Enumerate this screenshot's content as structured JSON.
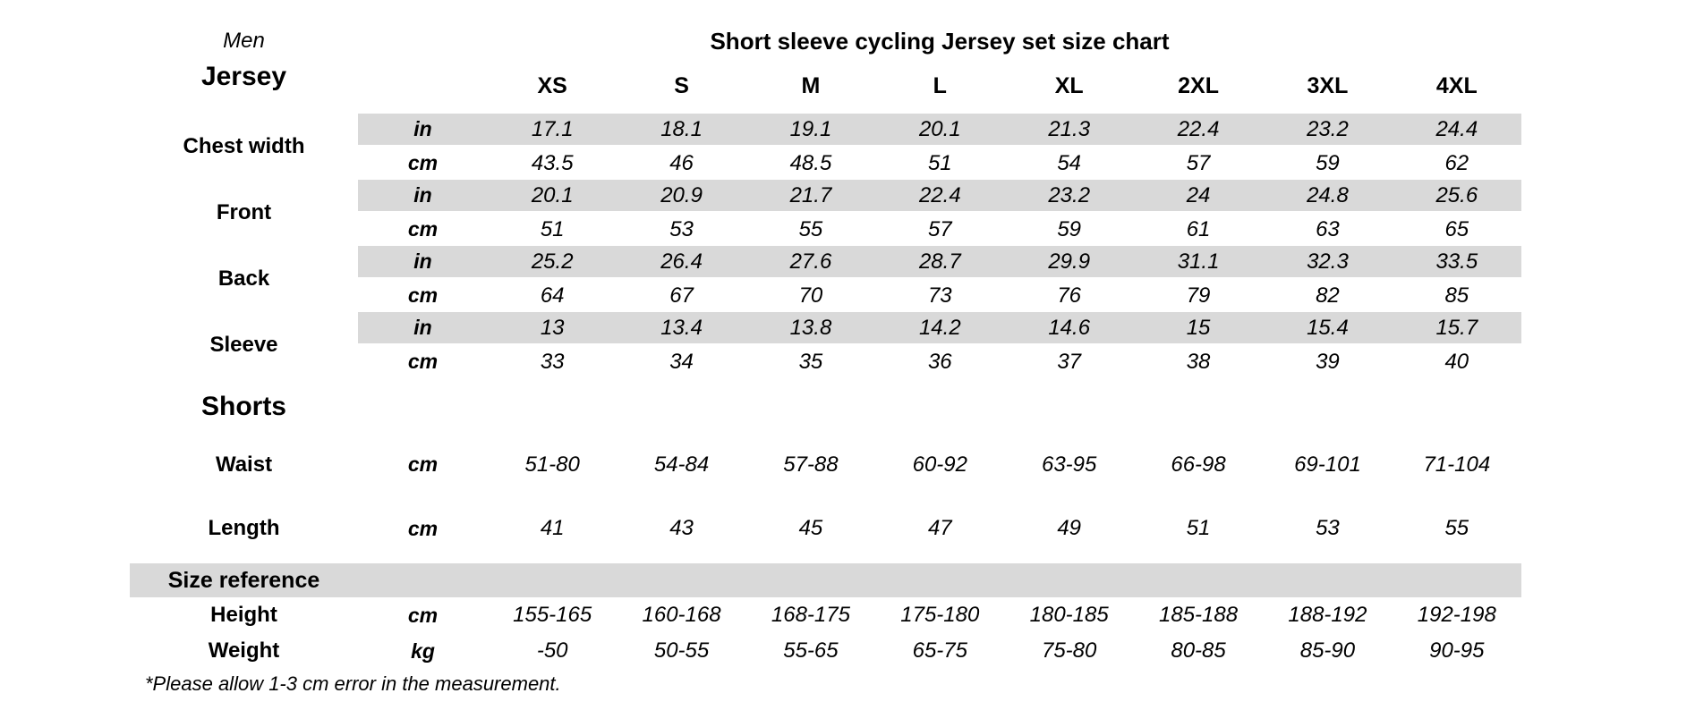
{
  "page": {
    "gender": "Men",
    "title": "Short sleeve cycling Jersey set size chart",
    "footnote": "*Please allow 1-3 cm error in the measurement."
  },
  "sizes": [
    "XS",
    "S",
    "M",
    "L",
    "XL",
    "2XL",
    "3XL",
    "4XL"
  ],
  "jersey": {
    "label": "Jersey",
    "rows": [
      {
        "label": "Chest width",
        "units": [
          {
            "unit": "in",
            "values": [
              "17.1",
              "18.1",
              "19.1",
              "20.1",
              "21.3",
              "22.4",
              "23.2",
              "24.4"
            ]
          },
          {
            "unit": "cm",
            "values": [
              "43.5",
              "46",
              "48.5",
              "51",
              "54",
              "57",
              "59",
              "62"
            ]
          }
        ]
      },
      {
        "label": "Front",
        "units": [
          {
            "unit": "in",
            "values": [
              "20.1",
              "20.9",
              "21.7",
              "22.4",
              "23.2",
              "24",
              "24.8",
              "25.6"
            ]
          },
          {
            "unit": "cm",
            "values": [
              "51",
              "53",
              "55",
              "57",
              "59",
              "61",
              "63",
              "65"
            ]
          }
        ]
      },
      {
        "label": "Back",
        "units": [
          {
            "unit": "in",
            "values": [
              "25.2",
              "26.4",
              "27.6",
              "28.7",
              "29.9",
              "31.1",
              "32.3",
              "33.5"
            ]
          },
          {
            "unit": "cm",
            "values": [
              "64",
              "67",
              "70",
              "73",
              "76",
              "79",
              "82",
              "85"
            ]
          }
        ]
      },
      {
        "label": "Sleeve",
        "units": [
          {
            "unit": "in",
            "values": [
              "13",
              "13.4",
              "13.8",
              "14.2",
              "14.6",
              "15",
              "15.4",
              "15.7"
            ]
          },
          {
            "unit": "cm",
            "values": [
              "33",
              "34",
              "35",
              "36",
              "37",
              "38",
              "39",
              "40"
            ]
          }
        ]
      }
    ]
  },
  "shorts": {
    "label": "Shorts",
    "rows": [
      {
        "label": "Waist",
        "unit": "cm",
        "values": [
          "51-80",
          "54-84",
          "57-88",
          "60-92",
          "63-95",
          "66-98",
          "69-101",
          "71-104"
        ]
      },
      {
        "label": "Length",
        "unit": "cm",
        "values": [
          "41",
          "43",
          "45",
          "47",
          "49",
          "51",
          "53",
          "55"
        ]
      }
    ]
  },
  "size_reference": {
    "label": "Size reference",
    "rows": [
      {
        "label": "Height",
        "unit": "cm",
        "values": [
          "155-165",
          "160-168",
          "168-175",
          "175-180",
          "180-185",
          "185-188",
          "188-192",
          "192-198"
        ]
      },
      {
        "label": "Weight",
        "unit": "kg",
        "values": [
          "-50",
          "50-55",
          "55-65",
          "65-75",
          "75-80",
          "80-85",
          "85-90",
          "90-95"
        ]
      }
    ]
  },
  "colors": {
    "band": "#d9d9d9",
    "text": "#000000",
    "background": "#ffffff"
  }
}
